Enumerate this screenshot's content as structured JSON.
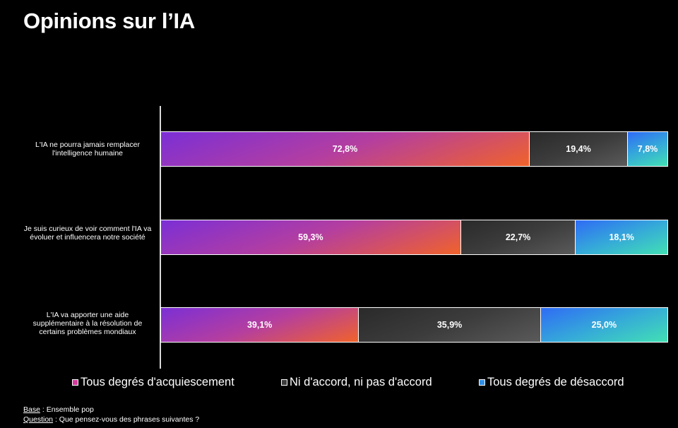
{
  "title": "Opinions sur l’IA",
  "chart_data": {
    "type": "bar",
    "orientation": "horizontal",
    "stacked": true,
    "percent_stacked": true,
    "categories": [
      "L'IA ne pourra jamais remplacer l'intelligence humaine",
      "Je suis curieux de voir comment l'IA va évoluer et influencera notre société",
      "L'IA va apporter une aide supplémentaire à la résolution de certains problèmes mondiaux"
    ],
    "series": [
      {
        "name": "Tous degrés d'acquiescement",
        "values": [
          72.8,
          59.3,
          39.1
        ],
        "labels": [
          "72,8%",
          "59,3%",
          "39,1%"
        ],
        "color": "#b43ea0"
      },
      {
        "name": "Ni d'accord, ni pas d'accord",
        "values": [
          19.4,
          22.7,
          35.9
        ],
        "labels": [
          "19,4%",
          "22,7%",
          "35,9%"
        ],
        "color": "#3c3c3c"
      },
      {
        "name": "Tous degrés de désaccord",
        "values": [
          7.8,
          18.1,
          25.0
        ],
        "labels": [
          "7,8%",
          "18,1%",
          "25,0%"
        ],
        "color": "#35a9d9"
      }
    ],
    "legend_position": "bottom",
    "grid": false
  },
  "footnotes": {
    "base_label": "Base",
    "base_text": " : Ensemble pop",
    "question_label": "Question",
    "question_text": " : Que pensez-vous des phrases suivantes ?"
  }
}
